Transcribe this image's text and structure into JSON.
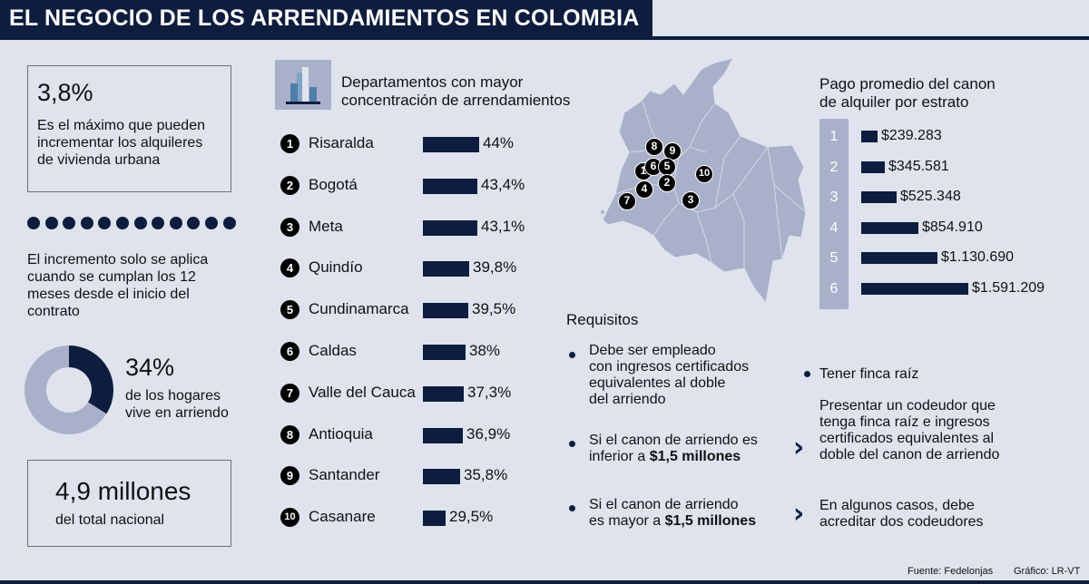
{
  "header": {
    "title": "EL NEGOCIO DE LOS ARRENDAMIENTOS EN COLOMBIA"
  },
  "max_increase": {
    "value": "3,8%",
    "text": [
      "Es el máximo que pueden",
      "incrementar los alquileres",
      "de vivienda urbana"
    ]
  },
  "increment_note": [
    "El incremento solo se aplica",
    "cuando se cumplan los 12",
    "meses desde el inicio del",
    "contrato"
  ],
  "households": {
    "value": "34%",
    "text": [
      "de los hogares",
      "vive en arriendo"
    ],
    "fraction": 0.34
  },
  "total": {
    "value": "4,9 millones",
    "text": "del total nacional"
  },
  "ranking": {
    "title": [
      "Departamentos con mayor",
      "concentración de arrendamientos"
    ],
    "items": [
      {
        "n": "1",
        "name": "Risaralda",
        "value": "44%",
        "pct": 44
      },
      {
        "n": "2",
        "name": "Bogotá",
        "value": "43,4%",
        "pct": 43.4
      },
      {
        "n": "3",
        "name": "Meta",
        "value": "43,1%",
        "pct": 43.1
      },
      {
        "n": "4",
        "name": "Quindío",
        "value": "39,8%",
        "pct": 39.8
      },
      {
        "n": "5",
        "name": "Cundinamarca",
        "value": "39,5%",
        "pct": 39.5
      },
      {
        "n": "6",
        "name": "Caldas",
        "value": "38%",
        "pct": 38
      },
      {
        "n": "7",
        "name": "Valle del Cauca",
        "value": "37,3%",
        "pct": 37.3
      },
      {
        "n": "8",
        "name": "Antioquia",
        "value": "36,9%",
        "pct": 36.9
      },
      {
        "n": "9",
        "name": "Santander",
        "value": "35,8%",
        "pct": 35.8
      },
      {
        "n": "10",
        "name": "Casanare",
        "value": "29,5%",
        "pct": 29.5
      }
    ]
  },
  "map": {
    "pins": [
      "1",
      "2",
      "3",
      "4",
      "5",
      "6",
      "7",
      "8",
      "9",
      "10"
    ]
  },
  "estrato": {
    "title": [
      "Pago promedio del canon",
      "de alquiler por estrato"
    ],
    "items": [
      {
        "n": "1",
        "value": "$239.283",
        "amount": 239283
      },
      {
        "n": "2",
        "value": "$345.581",
        "amount": 345581
      },
      {
        "n": "3",
        "value": "$525.348",
        "amount": 525348
      },
      {
        "n": "4",
        "value": "$854.910",
        "amount": 854910
      },
      {
        "n": "5",
        "value": "$1.130.690",
        "amount": 1130690
      },
      {
        "n": "6",
        "value": "$1.591.209",
        "amount": 1591209
      }
    ]
  },
  "requisitos": {
    "title": "Requisitos",
    "r1": [
      "Debe ser empleado",
      "con ingresos certificados",
      "equivalentes al doble",
      "del arriendo"
    ],
    "r2": {
      "pre": [
        "Si el canon de arriendo es",
        "inferior a "
      ],
      "bold": "$1,5 millones"
    },
    "r3": {
      "pre": [
        "Si el canon de arriendo",
        "es mayor a "
      ],
      "bold": "$1,5 millones"
    },
    "r4": "Tener finca raíz",
    "r5": [
      "Presentar un codeudor que",
      "tenga finca raíz e ingresos",
      "certificados equivalentes al",
      "doble del canon de arriendo"
    ],
    "r6": [
      "En algunos casos, debe",
      "acreditar dos codeudores"
    ]
  },
  "footer": {
    "source": "Fuente: Fedelonjas",
    "credit": "Gráfico: LR-VT"
  },
  "colors": {
    "navy": "#0e1d3e",
    "background": "#dfe3ee",
    "map": "#a9b0c9"
  }
}
